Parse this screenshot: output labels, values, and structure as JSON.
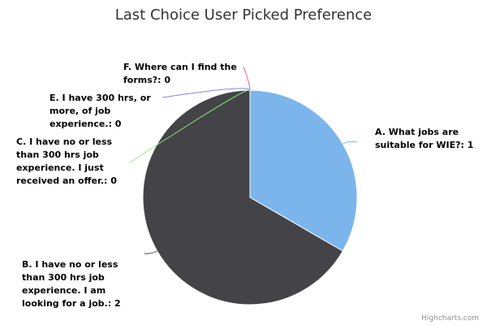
{
  "chart_data": {
    "type": "pie",
    "title": "Last Choice User Picked Preference",
    "series": [
      {
        "slices": [
          {
            "label_lines": [
              "A. What jobs are",
              "suitable for WIE?: 1"
            ],
            "name": "A. What jobs are suitable for WIE?",
            "value": 1,
            "color": "#7cb5ec"
          },
          {
            "label_lines": [
              "B. I have no or less",
              "than 300 hrs job",
              "experience. I am",
              "looking for a job.: 2"
            ],
            "name": "B. I have no or less than 300 hrs job experience. I am looking for a job.",
            "value": 2,
            "color": "#434348"
          },
          {
            "label_lines": [
              "C. I have no or less",
              "than 300 hrs job",
              "experience. I just",
              "received an offer.: 0"
            ],
            "name": "C. I have no or less than 300 hrs job experience. I just received an offer.",
            "value": 0,
            "color": "#90ed7d"
          },
          {
            "label_lines": [
              "E. I have 300 hrs, or",
              "more, of job",
              "experience.: 0"
            ],
            "name": "E. I have 300 hrs, or more, of job experience.",
            "value": 0,
            "color": "#8085e9"
          },
          {
            "label_lines": [
              "F. Where can I find the",
              "forms?: 0"
            ],
            "name": "F. Where can I find the forms?",
            "value": 0,
            "color": "#f15c80"
          }
        ]
      }
    ],
    "data_labels": true,
    "legend": "none"
  },
  "credits": "Highcharts.com"
}
